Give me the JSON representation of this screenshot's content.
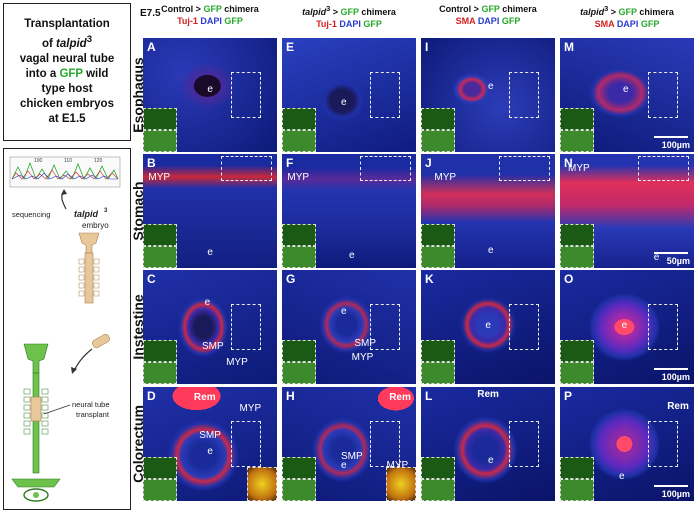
{
  "title": {
    "line1": "Transplantation",
    "line2a": "of ",
    "line2b": "talpid",
    "line2sup": "3",
    "line3": "vagal neural tube",
    "line4a": "into a ",
    "line4b": "GFP",
    "line4c": " wild",
    "line5": "type host",
    "line6": "chicken embryos",
    "line7": "at E1.5"
  },
  "diagram": {
    "sequencing": "sequencing",
    "talpid": "talpid",
    "sup": "3",
    "embryo": "embryo",
    "transplant1": "neural tube",
    "transplant2": "transplant",
    "seq_nums": [
      "100",
      "110",
      "120"
    ]
  },
  "stage": "E7.5",
  "columns": [
    {
      "pre": "Control",
      "arrow": " > ",
      "gfp": "GFP",
      "post": " chimera",
      "m1": "Tuj-1",
      "m2": "DAPI",
      "m3": "GFP",
      "m1color": "#d42020"
    },
    {
      "pre": "talpid",
      "sup": "3",
      "arrow": " > ",
      "gfp": "GFP",
      "post": " chimera",
      "m1": "Tuj-1",
      "m2": "DAPI",
      "m3": "GFP",
      "m1color": "#d42020"
    },
    {
      "pre": "Control",
      "arrow": " > ",
      "gfp": "GFP",
      "post": " chimera",
      "m1": "SMA",
      "m2": "DAPI",
      "m3": "GFP",
      "m1color": "#d42020"
    },
    {
      "pre": "talpid",
      "sup": "3",
      "arrow": " > ",
      "gfp": "GFP",
      "post": " chimera",
      "m1": "SMA",
      "m2": "DAPI",
      "m3": "GFP",
      "m1color": "#d42020"
    }
  ],
  "rows": [
    "Esophagus",
    "Stomach",
    "Instestine",
    "Colorectum"
  ],
  "panels": [
    {
      "letter": "A",
      "labels": [
        "e"
      ],
      "bg": "esoA"
    },
    {
      "letter": "E",
      "labels": [
        "e"
      ],
      "bg": "esoE"
    },
    {
      "letter": "I",
      "labels": [
        "e"
      ],
      "bg": "esoI"
    },
    {
      "letter": "M",
      "labels": [
        "e"
      ],
      "bg": "esoM",
      "scale": "100µm"
    },
    {
      "letter": "B",
      "labels": [
        "MYP",
        "e"
      ],
      "bg": "stoB"
    },
    {
      "letter": "F",
      "labels": [
        "MYP",
        "e"
      ],
      "bg": "stoF"
    },
    {
      "letter": "J",
      "labels": [
        "MYP",
        "e"
      ],
      "bg": "stoJ"
    },
    {
      "letter": "N",
      "labels": [
        "MYP",
        "e"
      ],
      "bg": "stoN",
      "scale": "50µm"
    },
    {
      "letter": "C",
      "labels": [
        "e",
        "SMP",
        "MYP"
      ],
      "bg": "intC"
    },
    {
      "letter": "G",
      "labels": [
        "e",
        "SMP",
        "MYP"
      ],
      "bg": "intG"
    },
    {
      "letter": "K",
      "labels": [
        "e"
      ],
      "bg": "intK"
    },
    {
      "letter": "O",
      "labels": [
        "e"
      ],
      "bg": "intO",
      "scale": "100µm"
    },
    {
      "letter": "D",
      "labels": [
        "Rem",
        "MYP",
        "SMP",
        "e"
      ],
      "bg": "colD"
    },
    {
      "letter": "H",
      "labels": [
        "Rem",
        "SMP",
        "MYP",
        "e"
      ],
      "bg": "colH"
    },
    {
      "letter": "L",
      "labels": [
        "Rem",
        "e"
      ],
      "bg": "colL"
    },
    {
      "letter": "P",
      "labels": [
        "Rem",
        "e"
      ],
      "bg": "colP",
      "scale": "100µm"
    }
  ]
}
